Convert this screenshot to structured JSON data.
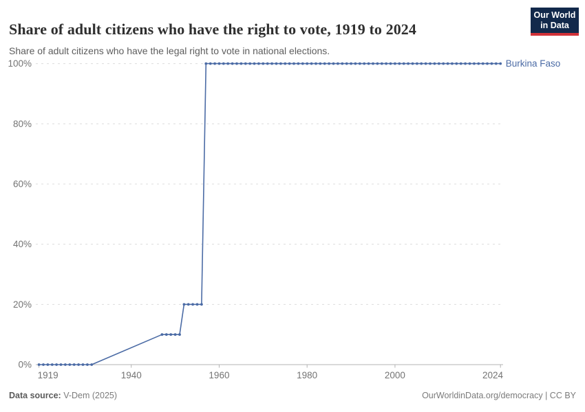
{
  "header": {
    "title": "Share of adult citizens who have the right to vote, 1919 to 2024",
    "subtitle": "Share of adult citizens who have the legal right to vote in national elections."
  },
  "logo": {
    "line1": "Our World",
    "line2": "in Data",
    "bg_color": "#12294b",
    "bar_color": "#d13239"
  },
  "chart_data": {
    "type": "line",
    "title": "Share of adult citizens who have the right to vote, 1919 to 2024",
    "xlabel": "",
    "ylabel": "",
    "unit": "%",
    "xlim": [
      1919,
      2024
    ],
    "ylim": [
      0,
      100
    ],
    "grid": true,
    "legend_position": "right-of-line-end",
    "xticks": [
      1919,
      1940,
      1960,
      1980,
      2000,
      2024
    ],
    "yticks": [
      0,
      20,
      40,
      60,
      80,
      100
    ],
    "series": [
      {
        "name": "Burkina Faso",
        "color": "#4b6ba5",
        "marker_every_year": true,
        "interpolate_gaps": true,
        "segments": [
          {
            "start": 1919,
            "end": 1931,
            "value": 0
          },
          {
            "start": 1947,
            "end": 1951,
            "value": 10
          },
          {
            "start": 1952,
            "end": 1956,
            "value": 20
          },
          {
            "start": 1957,
            "end": 2024,
            "value": 100
          }
        ]
      }
    ]
  },
  "footer": {
    "source_label": "Data source:",
    "source_text": " V-Dem (2025)",
    "right_text": "OurWorldinData.org/democracy | CC BY"
  }
}
